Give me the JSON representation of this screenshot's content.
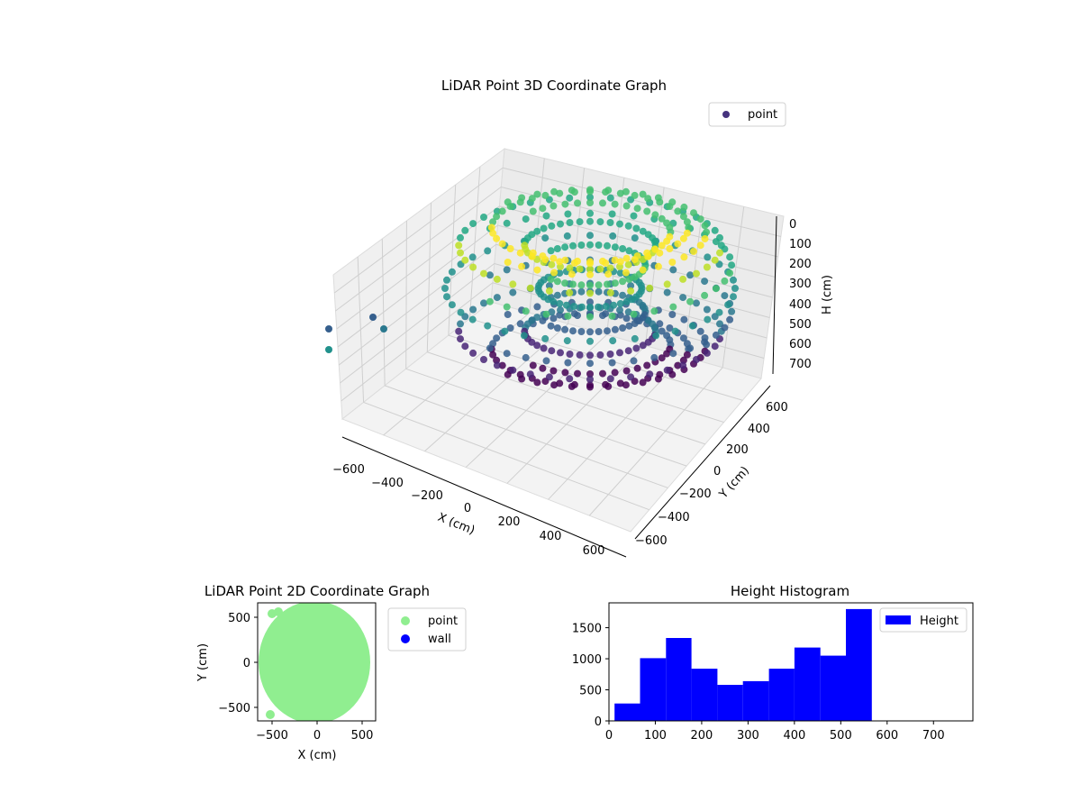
{
  "chart_data": [
    {
      "type": "scatter",
      "projection": "3d",
      "title": "LiDAR Point 3D Coordinate Graph",
      "xlabel": "X (cm)",
      "ylabel": "Y (cm)",
      "zlabel": "H (cm)",
      "xticks": [
        "−600",
        "−400",
        "−200",
        "0",
        "200",
        "400",
        "600"
      ],
      "yticks": [
        "600",
        "400",
        "200",
        "0",
        "−200",
        "−400",
        "−600"
      ],
      "zticks": [
        "0",
        "100",
        "200",
        "300",
        "400",
        "500",
        "600",
        "700"
      ],
      "zlim": [
        0,
        750
      ],
      "z_inverted": true,
      "grid": true,
      "legend": {
        "position": "upper-right",
        "entries": [
          {
            "label": "point",
            "color": "#46337e"
          }
        ]
      },
      "colormap": "viridis",
      "series": [
        {
          "name": "point",
          "shape": "torus",
          "radial_extent": [
            -600,
            600
          ],
          "height_extent": [
            0,
            560
          ]
        }
      ]
    },
    {
      "type": "scatter",
      "title": "LiDAR Point 2D Coordinate Graph",
      "xlabel": "X (cm)",
      "ylabel": "Y (cm)",
      "xticks": [
        "−500",
        "0",
        "500"
      ],
      "yticks": [
        "500",
        "0",
        "−500"
      ],
      "xlim": [
        -650,
        650
      ],
      "ylim": [
        -650,
        650
      ],
      "grid": false,
      "legend": {
        "position": "outside-right"
      },
      "series": [
        {
          "name": "point",
          "color": "#90ee90",
          "shape": "disk",
          "radius": 600
        },
        {
          "name": "wall",
          "color": "#0000ff",
          "points": []
        }
      ]
    },
    {
      "type": "bar",
      "title": "Height Histogram",
      "xticks": [
        "0",
        "100",
        "200",
        "300",
        "400",
        "500",
        "600",
        "700"
      ],
      "yticks": [
        "0",
        "500",
        "1000",
        "1500"
      ],
      "xlim": [
        0,
        785
      ],
      "ylim": [
        0,
        1900
      ],
      "grid": false,
      "legend": {
        "position": "upper-right",
        "entries": [
          {
            "label": "Height",
            "color": "#0000ff"
          }
        ]
      },
      "bins": [
        {
          "x0": 12,
          "x1": 67,
          "count": 280
        },
        {
          "x0": 67,
          "x1": 123,
          "count": 1010
        },
        {
          "x0": 123,
          "x1": 178,
          "count": 1335
        },
        {
          "x0": 178,
          "x1": 234,
          "count": 840
        },
        {
          "x0": 234,
          "x1": 289,
          "count": 580
        },
        {
          "x0": 289,
          "x1": 345,
          "count": 640
        },
        {
          "x0": 345,
          "x1": 400,
          "count": 840
        },
        {
          "x0": 400,
          "x1": 456,
          "count": 1180
        },
        {
          "x0": 456,
          "x1": 511,
          "count": 1050
        },
        {
          "x0": 511,
          "x1": 567,
          "count": 1800
        }
      ],
      "bar_color": "#0000ff"
    }
  ]
}
